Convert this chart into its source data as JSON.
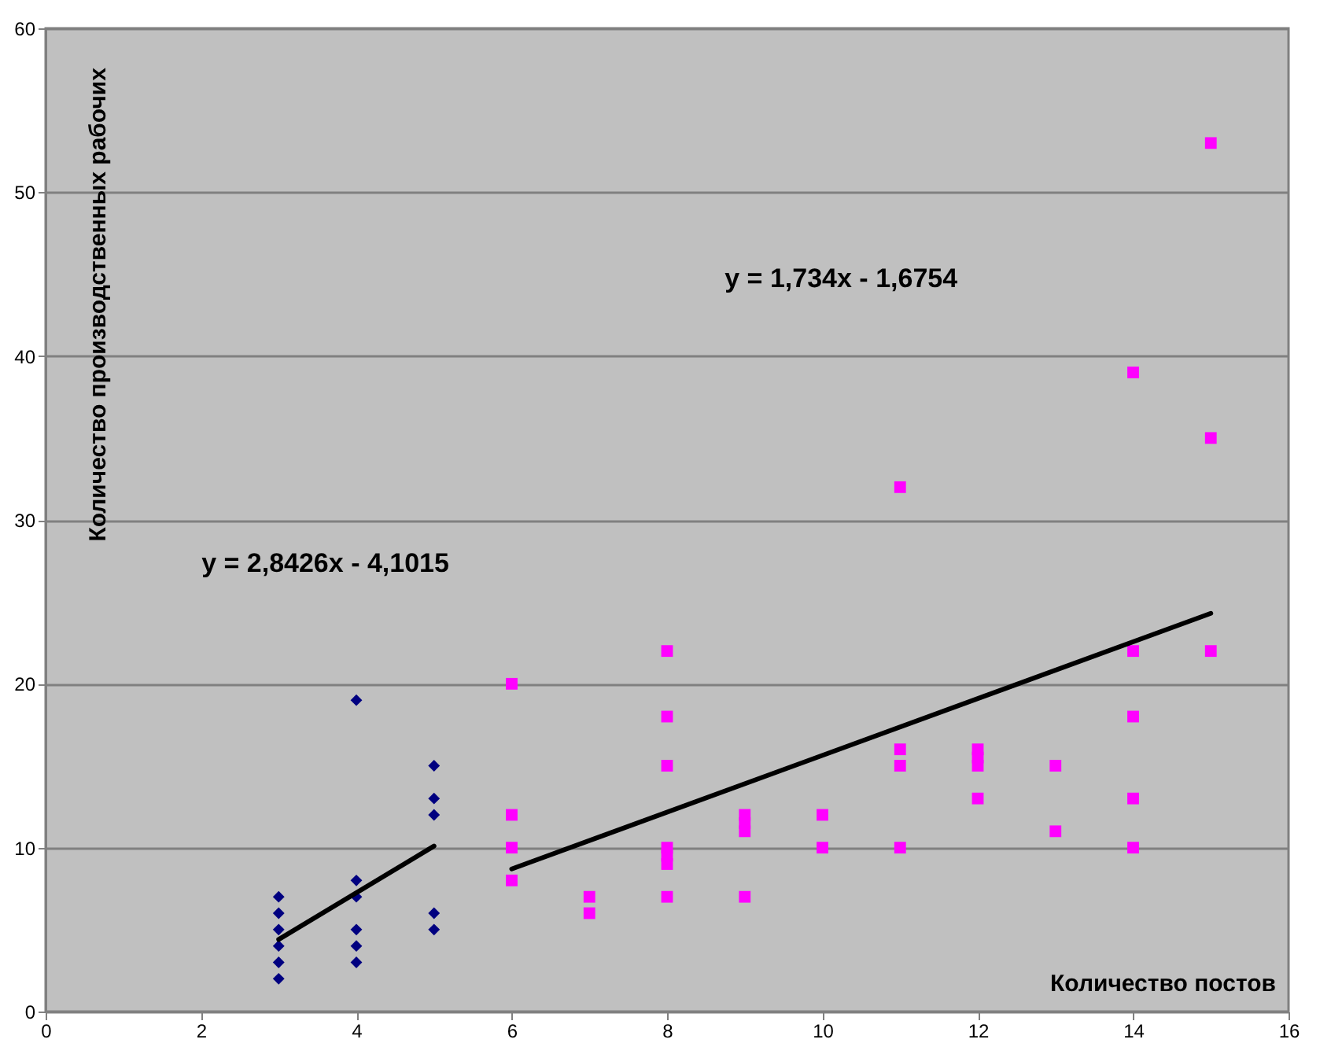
{
  "chart_data": {
    "type": "scatter",
    "xlabel": "Количество постов",
    "ylabel": "Количество производственных рабочих",
    "xlim": [
      0,
      16
    ],
    "xticks": [
      0,
      2,
      4,
      6,
      8,
      10,
      12,
      14,
      16
    ],
    "ylim": [
      0,
      60
    ],
    "yticks": [
      0,
      10,
      20,
      30,
      40,
      50,
      60
    ],
    "grid": "y",
    "annotations": [
      "y = 2,8426x - 4,1015",
      "y = 1,734x - 1,6754"
    ],
    "series": [
      {
        "marker": "diamond",
        "color": "#000080",
        "x": [
          3,
          3,
          3,
          3,
          3,
          3,
          4,
          4,
          4,
          4,
          4,
          4,
          5,
          5,
          5,
          5,
          5
        ],
        "values": [
          2,
          3,
          4,
          5,
          6,
          7,
          19,
          8,
          7,
          5,
          4,
          3,
          15,
          13,
          12,
          6,
          5
        ]
      },
      {
        "marker": "square",
        "color": "#ff00ff",
        "x": [
          6,
          6,
          6,
          6,
          7,
          7,
          8,
          8,
          8,
          8,
          8,
          8,
          8,
          9,
          9,
          9,
          9,
          10,
          10,
          11,
          11,
          11,
          11,
          12,
          12,
          12,
          12,
          13,
          13,
          14,
          14,
          14,
          14,
          14,
          15,
          15,
          15
        ],
        "values": [
          20,
          12,
          10,
          8,
          7,
          6,
          22,
          18,
          15,
          10,
          9.5,
          9,
          7,
          12,
          11.5,
          11,
          7,
          12,
          10,
          32,
          16,
          15,
          10,
          16,
          15.5,
          15,
          13,
          15,
          11,
          39,
          22,
          18,
          13,
          10,
          53,
          35,
          22
        ]
      },
      {
        "type": "line",
        "color": "#000000",
        "x": [
          3,
          5
        ],
        "values": [
          4.4,
          10.1
        ]
      },
      {
        "type": "line",
        "color": "#000000",
        "x": [
          6,
          15
        ],
        "values": [
          8.7,
          24.3
        ]
      }
    ]
  }
}
